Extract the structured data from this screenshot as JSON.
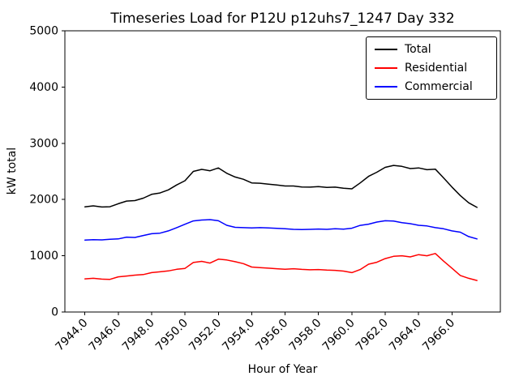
{
  "chart_data": {
    "type": "line",
    "title": "Timeseries Load for P12U p12uhs7_1247  Day 332",
    "xlabel": "Hour of Year",
    "ylabel": "kW total",
    "xlim": [
      7942.8,
      7968.9
    ],
    "ylim": [
      0,
      5000
    ],
    "grid": false,
    "legend_position": "upper right",
    "xticks": {
      "values": [
        7944,
        7946,
        7948,
        7950,
        7952,
        7954,
        7956,
        7958,
        7960,
        7962,
        7964,
        7966
      ],
      "labels": [
        "7944.0",
        "7946.0",
        "7948.0",
        "7950.0",
        "7952.0",
        "7954.0",
        "7956.0",
        "7958.0",
        "7960.0",
        "7962.0",
        "7964.0",
        "7966.0"
      ]
    },
    "yticks": {
      "values": [
        0,
        1000,
        2000,
        3000,
        4000,
        5000
      ],
      "labels": [
        "0",
        "1000",
        "2000",
        "3000",
        "4000",
        "5000"
      ]
    },
    "x": [
      7944.0,
      7944.5,
      7945.0,
      7945.5,
      7946.0,
      7946.5,
      7947.0,
      7947.5,
      7948.0,
      7948.5,
      7949.0,
      7949.5,
      7950.0,
      7950.5,
      7951.0,
      7951.5,
      7952.0,
      7952.5,
      7953.0,
      7953.5,
      7954.0,
      7954.5,
      7955.0,
      7955.5,
      7956.0,
      7956.5,
      7957.0,
      7957.5,
      7958.0,
      7958.5,
      7959.0,
      7959.5,
      7960.0,
      7960.5,
      7961.0,
      7961.5,
      7962.0,
      7962.5,
      7963.0,
      7963.5,
      7964.0,
      7964.5,
      7965.0,
      7965.5,
      7966.0,
      7966.5,
      7967.0,
      7967.5
    ],
    "series": [
      {
        "name": "Total",
        "color": "#000000",
        "values": [
          1870,
          1887,
          1867,
          1872,
          1925,
          1972,
          1981,
          2025,
          2092,
          2117,
          2172,
          2260,
          2335,
          2500,
          2536,
          2512,
          2562,
          2467,
          2401,
          2360,
          2296,
          2290,
          2274,
          2258,
          2240,
          2240,
          2224,
          2220,
          2231,
          2215,
          2220,
          2202,
          2190,
          2295,
          2412,
          2485,
          2572,
          2606,
          2590,
          2550,
          2562,
          2530,
          2540,
          2385,
          2222,
          2070,
          1942,
          1860
        ]
      },
      {
        "name": "Residential",
        "color": "#ff0000",
        "values": [
          590,
          600,
          585,
          580,
          625,
          640,
          655,
          665,
          700,
          715,
          730,
          760,
          775,
          880,
          900,
          870,
          940,
          925,
          895,
          860,
          800,
          790,
          780,
          770,
          760,
          770,
          758,
          750,
          755,
          745,
          740,
          728,
          700,
          755,
          850,
          885,
          950,
          990,
          1000,
          980,
          1020,
          1000,
          1040,
          905,
          780,
          650,
          600,
          560
        ]
      },
      {
        "name": "Commercial",
        "color": "#0000ff",
        "values": [
          1280,
          1287,
          1282,
          1292,
          1300,
          1332,
          1326,
          1360,
          1392,
          1402,
          1442,
          1500,
          1560,
          1620,
          1636,
          1642,
          1622,
          1542,
          1506,
          1500,
          1496,
          1500,
          1494,
          1488,
          1480,
          1470,
          1466,
          1470,
          1476,
          1470,
          1480,
          1474,
          1490,
          1540,
          1562,
          1600,
          1622,
          1616,
          1590,
          1570,
          1542,
          1530,
          1500,
          1480,
          1442,
          1420,
          1342,
          1300
        ]
      }
    ]
  }
}
